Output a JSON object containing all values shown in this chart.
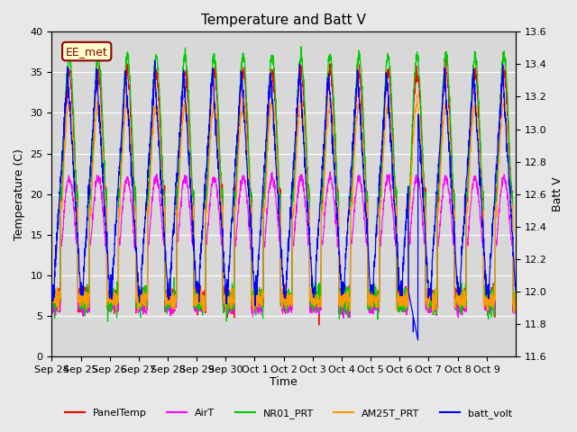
{
  "title": "Temperature and Batt V",
  "xlabel": "Time",
  "ylabel_left": "Temperature (C)",
  "ylabel_right": "Batt V",
  "annotation": "EE_met",
  "annotation_color": "#8B0000",
  "background_color": "#e8e8e8",
  "plot_bg_color": "#d8d8d8",
  "ylim_left": [
    0,
    40
  ],
  "ylim_right": [
    11.6,
    13.6
  ],
  "yticks_left": [
    0,
    5,
    10,
    15,
    20,
    25,
    30,
    35,
    40
  ],
  "yticks_right": [
    11.6,
    11.8,
    12.0,
    12.2,
    12.4,
    12.6,
    12.8,
    13.0,
    13.2,
    13.4,
    13.6
  ],
  "xtick_labels": [
    "Sep 24",
    "Sep 25",
    "Sep 26",
    "Sep 27",
    "Sep 28",
    "Sep 29",
    "Sep 30",
    "Oct 1",
    "Oct 2",
    "Oct 3",
    "Oct 4",
    "Oct 5",
    "Oct 6",
    "Oct 7",
    "Oct 8",
    "Oct 9"
  ],
  "legend_entries": [
    {
      "label": "PanelTemp",
      "color": "#ff0000"
    },
    {
      "label": "AirT",
      "color": "#ff00ff"
    },
    {
      "label": "NR01_PRT",
      "color": "#00cc00"
    },
    {
      "label": "AM25T_PRT",
      "color": "#ff9900"
    },
    {
      "label": "batt_volt",
      "color": "#0000ff"
    }
  ],
  "n_days": 16,
  "points_per_day": 144
}
